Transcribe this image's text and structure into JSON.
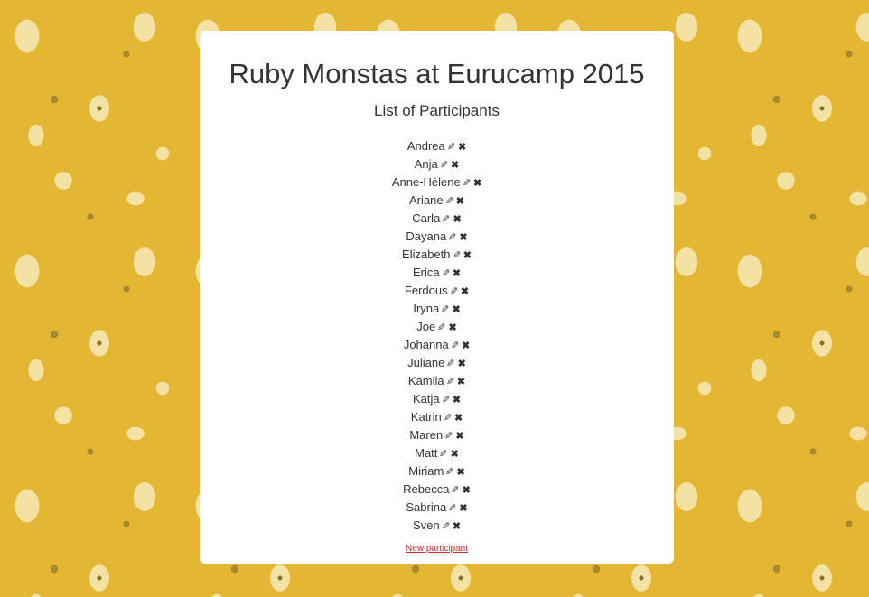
{
  "page": {
    "title": "Ruby Monstas at Eurucamp 2015",
    "subtitle": "List of Participants",
    "new_participant_link": "New participant"
  },
  "icons": {
    "edit": "pencil-icon",
    "delete": "remove-icon"
  },
  "colors": {
    "background": "#e3b733",
    "link": "#c9302c"
  },
  "participants": [
    "Andrea",
    "Anja",
    "Anne-Hélene",
    "Ariane",
    "Carla",
    "Dayana",
    "Elizabeth",
    "Erica",
    "Ferdous",
    "Iryna",
    "Joe",
    "Johanna",
    "Juliane",
    "Kamila",
    "Katja",
    "Katrin",
    "Maren",
    "Matt",
    "Miriam",
    "Rebecca",
    "Sabrina",
    "Sven"
  ]
}
